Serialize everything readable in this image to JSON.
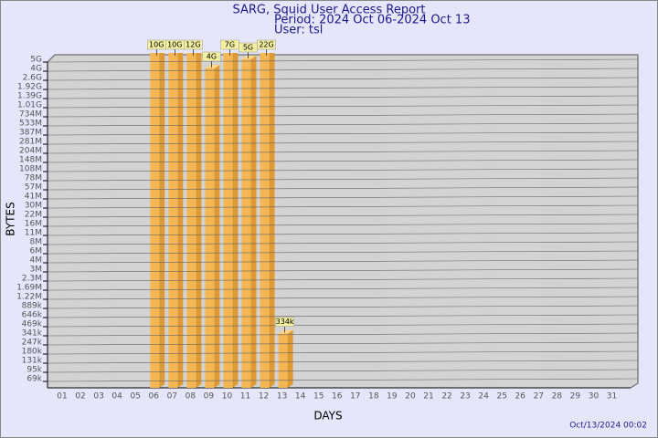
{
  "chart_data": {
    "type": "bar",
    "title": "SARG, Squid User Access Report",
    "subtitle": "Period: 2024 Oct 06-2024 Oct 13",
    "user": "User: tsl",
    "x_label": "DAYS",
    "y_label": "BYTES",
    "timestamp": "Oct/13/2024 00:02",
    "log_scale": true,
    "grid": true,
    "color": "#f5b754",
    "categories": [
      "01",
      "02",
      "03",
      "04",
      "05",
      "06",
      "07",
      "08",
      "09",
      "10",
      "11",
      "12",
      "13",
      "14",
      "15",
      "16",
      "17",
      "18",
      "19",
      "20",
      "21",
      "22",
      "23",
      "24",
      "25",
      "26",
      "27",
      "28",
      "29",
      "30",
      "31"
    ],
    "values": [
      null,
      null,
      null,
      null,
      null,
      10000000000,
      10000000000,
      12000000000,
      4000000000,
      7000000000,
      5000000000,
      22000000000,
      334000,
      null,
      null,
      null,
      null,
      null,
      null,
      null,
      null,
      null,
      null,
      null,
      null,
      null,
      null,
      null,
      null,
      null,
      null
    ],
    "value_labels": [
      null,
      null,
      null,
      null,
      null,
      "10G",
      "10G",
      "12G",
      "4G",
      "7G",
      "5G",
      "22G",
      "334k",
      null,
      null,
      null,
      null,
      null,
      null,
      null,
      null,
      null,
      null,
      null,
      null,
      null,
      null,
      null,
      null,
      null,
      null
    ],
    "ylim": [
      50000,
      5000000000
    ],
    "yticks": [
      {
        "value": 5000000000,
        "label": "5G"
      },
      {
        "value": 4000000000,
        "label": "4G"
      },
      {
        "value": 2600000000,
        "label": "2.6G"
      },
      {
        "value": 1920000000,
        "label": "1.92G"
      },
      {
        "value": 1390000000,
        "label": "1.39G"
      },
      {
        "value": 1010000000,
        "label": "1.01G"
      },
      {
        "value": 734000000,
        "label": "734M"
      },
      {
        "value": 533000000,
        "label": "533M"
      },
      {
        "value": 387000000,
        "label": "387M"
      },
      {
        "value": 281000000,
        "label": "281M"
      },
      {
        "value": 204000000,
        "label": "204M"
      },
      {
        "value": 148000000,
        "label": "148M"
      },
      {
        "value": 108000000,
        "label": "108M"
      },
      {
        "value": 78000000,
        "label": "78M"
      },
      {
        "value": 57000000,
        "label": "57M"
      },
      {
        "value": 41000000,
        "label": "41M"
      },
      {
        "value": 30000000,
        "label": "30M"
      },
      {
        "value": 22000000,
        "label": "22M"
      },
      {
        "value": 16000000,
        "label": "16M"
      },
      {
        "value": 11000000,
        "label": "11M"
      },
      {
        "value": 8000000,
        "label": "8M"
      },
      {
        "value": 6000000,
        "label": "6M"
      },
      {
        "value": 4000000,
        "label": "4M"
      },
      {
        "value": 3000000,
        "label": "3M"
      },
      {
        "value": 2300000,
        "label": "2.3M"
      },
      {
        "value": 1690000,
        "label": "1.69M"
      },
      {
        "value": 1220000,
        "label": "1.22M"
      },
      {
        "value": 889000,
        "label": "889k"
      },
      {
        "value": 646000,
        "label": "646k"
      },
      {
        "value": 469000,
        "label": "469k"
      },
      {
        "value": 341000,
        "label": "341k"
      },
      {
        "value": 247000,
        "label": "247k"
      },
      {
        "value": 180000,
        "label": "180k"
      },
      {
        "value": 131000,
        "label": "131k"
      },
      {
        "value": 95000,
        "label": "95k"
      },
      {
        "value": 69000,
        "label": "69k"
      }
    ]
  }
}
